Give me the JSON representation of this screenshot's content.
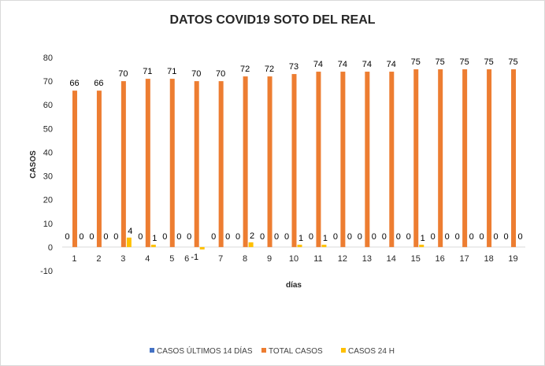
{
  "chart_data": {
    "type": "bar",
    "title": "DATOS COVID19 SOTO DEL REAL",
    "xlabel": "días",
    "ylabel": "CASOS",
    "ylim": [
      -10,
      80
    ],
    "yticks": [
      -10,
      0,
      10,
      20,
      30,
      40,
      50,
      60,
      70,
      80
    ],
    "grid": false,
    "legend": "bottom",
    "categories": [
      "1",
      "2",
      "3",
      "4",
      "5",
      "6",
      "7",
      "8",
      "9",
      "10",
      "11",
      "12",
      "13",
      "14",
      "15",
      "16",
      "17",
      "18",
      "19"
    ],
    "series": [
      {
        "name": "CASOS ÚLTIMOS 14 DÍAS",
        "color": "#4472c4",
        "values": [
          0,
          0,
          0,
          0,
          0,
          0,
          0,
          0,
          0,
          0,
          0,
          0,
          0,
          0,
          0,
          0,
          0,
          0,
          0
        ]
      },
      {
        "name": "TOTAL CASOS",
        "color": "#ed7d31",
        "values": [
          66,
          66,
          70,
          71,
          71,
          70,
          70,
          72,
          72,
          73,
          74,
          74,
          74,
          74,
          75,
          75,
          75,
          75,
          75
        ]
      },
      {
        "name": "CASOS 24 H",
        "color": "#ffc000",
        "values": [
          0,
          0,
          4,
          1,
          0,
          -1,
          0,
          2,
          0,
          1,
          1,
          0,
          0,
          0,
          1,
          0,
          0,
          0,
          0
        ]
      }
    ]
  }
}
